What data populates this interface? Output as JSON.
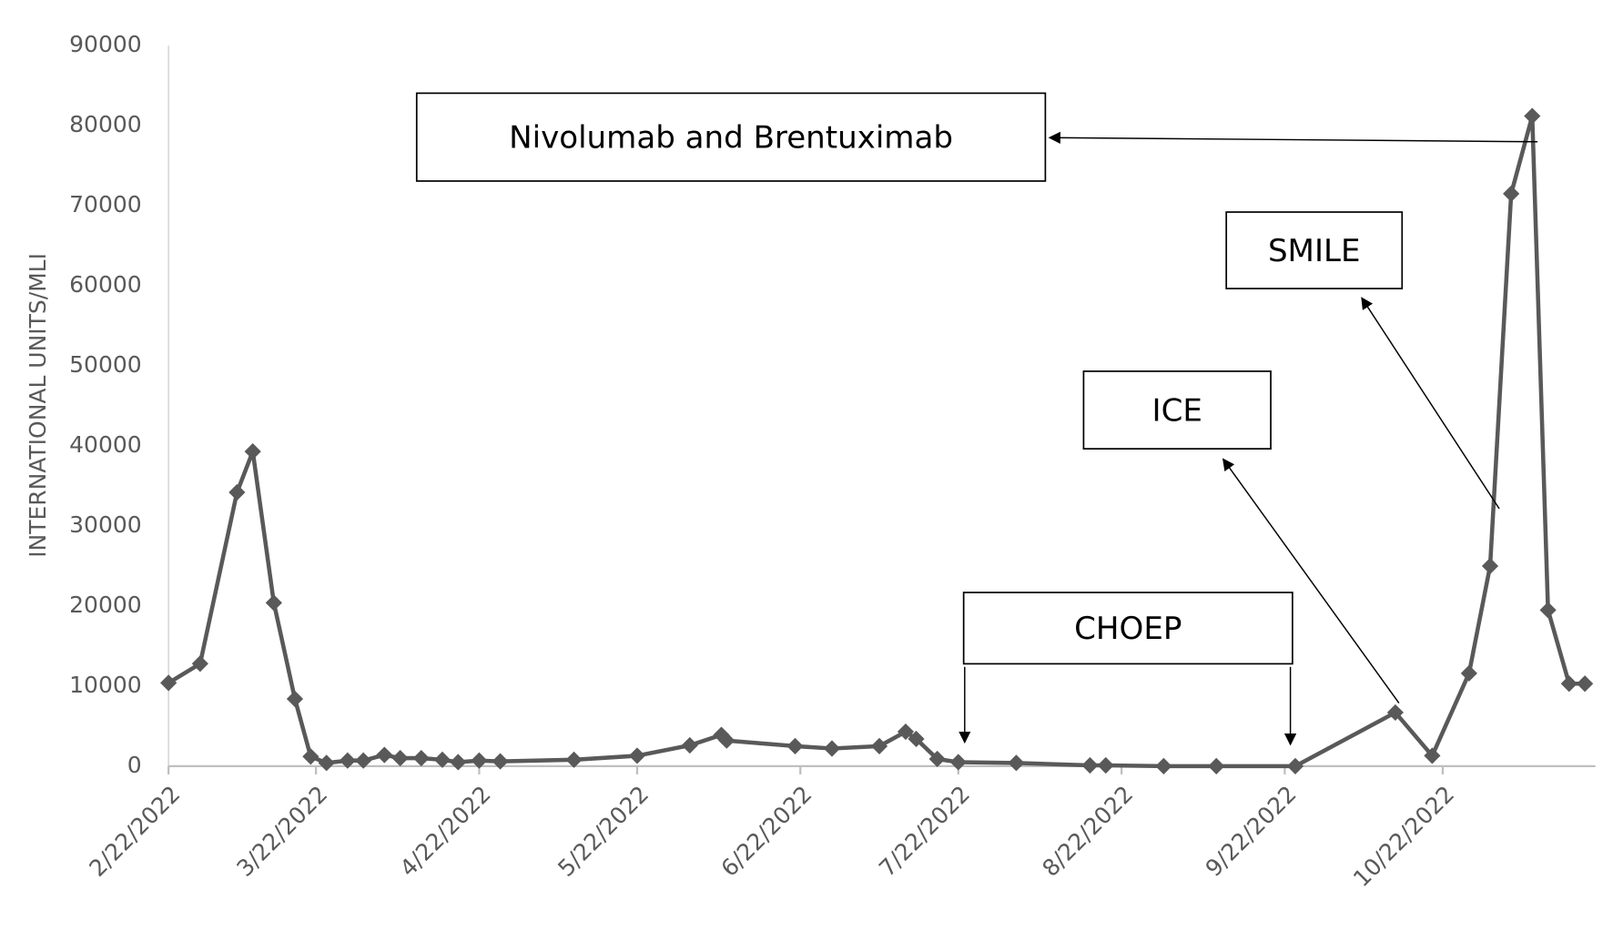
{
  "chart_data": {
    "type": "line",
    "y_label": "INTERNATIONAL UNITS/MLI",
    "x": [
      "2/22/2022",
      "2/28/2022",
      "3/7/2022",
      "3/10/2022",
      "3/14/2022",
      "3/18/2022",
      "3/21/2022",
      "3/24/2022",
      "3/28/2022",
      "3/31/2022",
      "4/4/2022",
      "4/7/2022",
      "4/11/2022",
      "4/15/2022",
      "4/18/2022",
      "4/22/2022",
      "4/26/2022",
      "5/10/2022",
      "5/22/2022",
      "6/1/2022",
      "6/7/2022",
      "6/8/2022",
      "6/21/2022",
      "6/28/2022",
      "7/7/2022",
      "7/12/2022",
      "7/14/2022",
      "7/18/2022",
      "7/22/2022",
      "8/2/2022",
      "8/16/2022",
      "8/19/2022",
      "8/30/2022",
      "9/9/2022",
      "9/24/2022",
      "10/13/2022",
      "10/20/2022",
      "10/27/2022",
      "10/31/2022",
      "11/4/2022",
      "11/8/2022",
      "11/11/2022",
      "11/15/2022",
      "11/18/2022"
    ],
    "series": [
      {
        "color": "#595959",
        "values": [
          10400,
          12800,
          34200,
          39300,
          20400,
          8400,
          1200,
          400,
          700,
          700,
          1400,
          1000,
          1000,
          800,
          500,
          700,
          600,
          800,
          1300,
          2600,
          3900,
          3200,
          2500,
          2200,
          2500,
          4300,
          3400,
          900,
          500,
          400,
          100,
          100,
          0,
          0,
          0,
          6700,
          1300,
          11600,
          25000,
          71500,
          81200,
          19500,
          10300,
          10300
        ]
      }
    ],
    "xlim": [
      "2/22/2022",
      "11/20/2022"
    ],
    "xticks": [
      "2/22/2022",
      "3/22/2022",
      "4/22/2022",
      "5/22/2022",
      "6/22/2022",
      "7/22/2022",
      "8/22/2022",
      "9/22/2022",
      "10/22/2022"
    ],
    "ylim": [
      0,
      90000
    ],
    "yticks": [
      0,
      10000,
      20000,
      30000,
      40000,
      50000,
      60000,
      70000,
      80000,
      90000
    ],
    "grid": false,
    "annotations": [
      "Nivolumab and Brentuximab",
      "SMILE",
      "ICE",
      "CHOEP"
    ]
  }
}
